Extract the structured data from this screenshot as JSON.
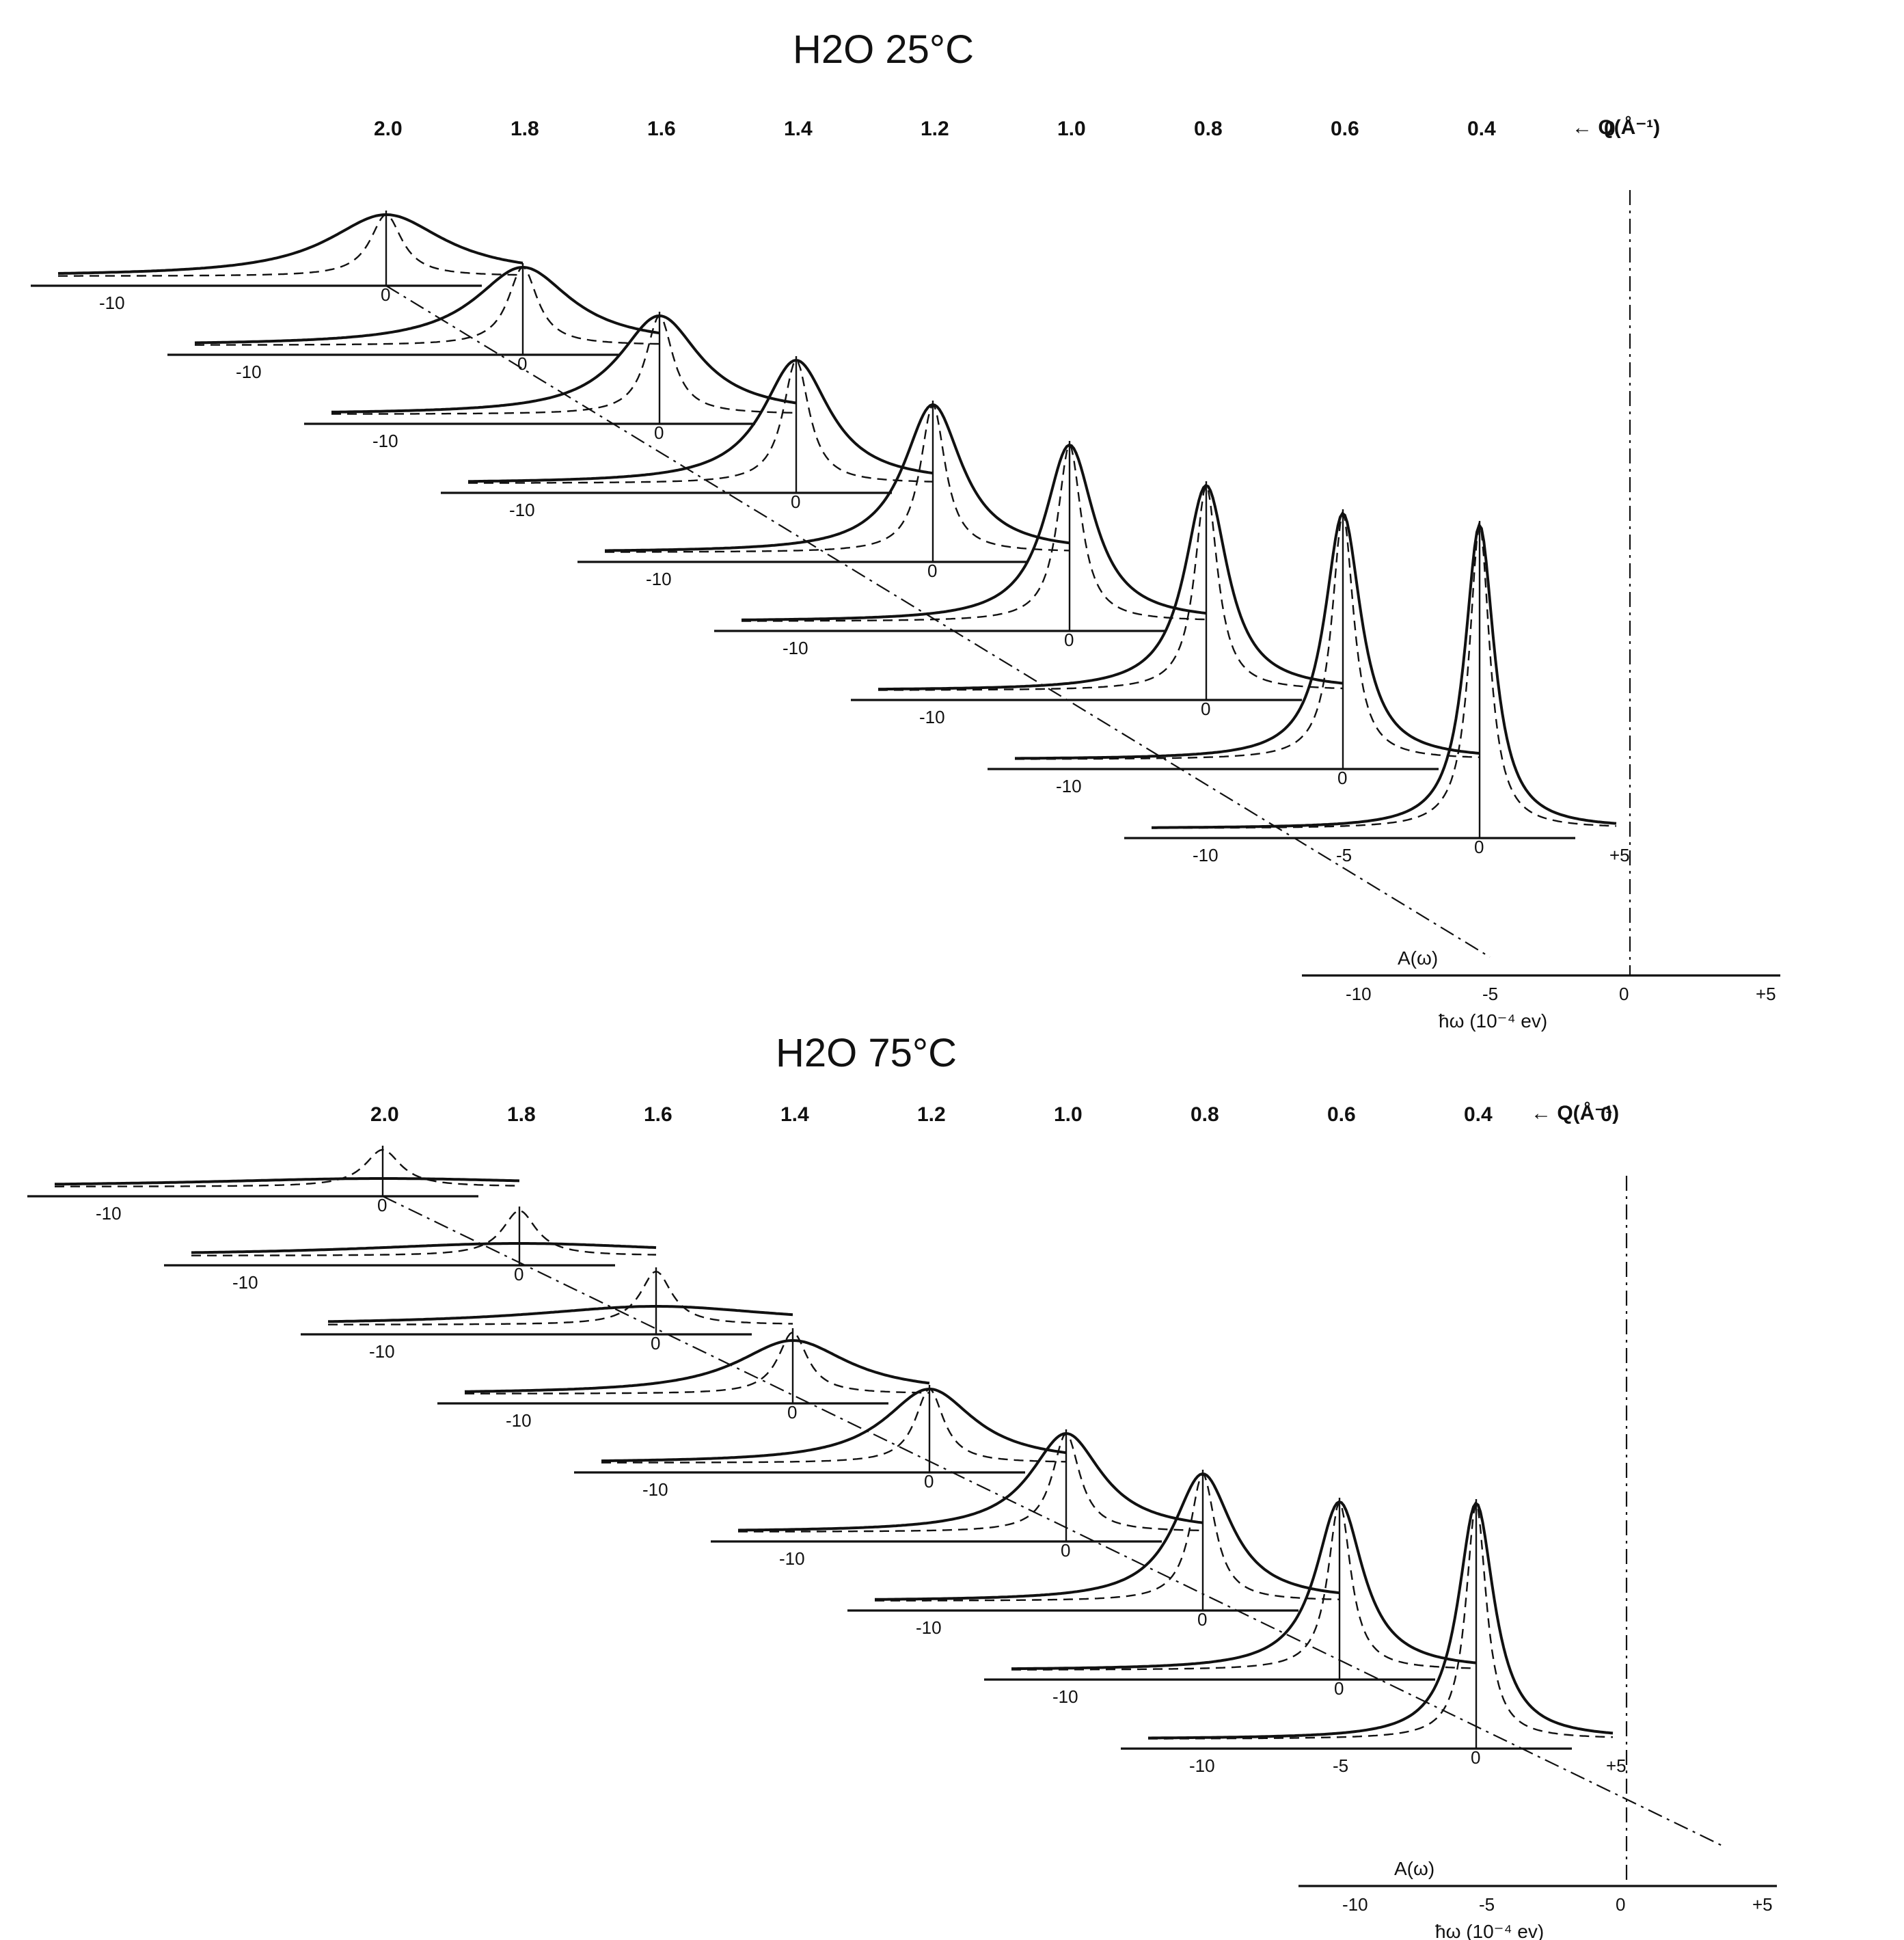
{
  "chart_data": [
    {
      "type": "line",
      "title": "H2O 25°C",
      "q_axis_label": "← Q(Å⁻¹)",
      "q_values": [
        "2.0",
        "1.8",
        "1.6",
        "1.4",
        "1.2",
        "1.0",
        "0.8",
        "0.6",
        "0.4",
        "0"
      ],
      "x_tick_labels": [
        "-10",
        "-5",
        "0",
        "+5"
      ],
      "xlabel": "ħω (10⁻⁴ ev)",
      "resolution_label": "A(ω)",
      "xlim": [
        -12,
        5
      ],
      "series": [
        {
          "name": "2.0",
          "solid_peak": 0.3,
          "solid_width": 5.2,
          "dashed_peak": 0.3,
          "dashed_width": 1.4
        },
        {
          "name": "1.8",
          "solid_peak": 0.38,
          "solid_width": 4.3,
          "dashed_peak": 0.38,
          "dashed_width": 1.3
        },
        {
          "name": "1.6",
          "solid_peak": 0.48,
          "solid_width": 3.6,
          "dashed_peak": 0.48,
          "dashed_width": 1.2
        },
        {
          "name": "1.4",
          "solid_peak": 0.6,
          "solid_width": 3.0,
          "dashed_peak": 0.6,
          "dashed_width": 1.15
        },
        {
          "name": "1.2",
          "solid_peak": 0.72,
          "solid_width": 2.6,
          "dashed_peak": 0.72,
          "dashed_width": 1.1
        },
        {
          "name": "1.0",
          "solid_peak": 0.86,
          "solid_width": 2.2,
          "dashed_peak": 0.86,
          "dashed_width": 1.05
        },
        {
          "name": "0.8",
          "solid_peak": 1.0,
          "solid_width": 1.9,
          "dashed_peak": 1.0,
          "dashed_width": 1.0
        },
        {
          "name": "0.6",
          "solid_peak": 1.2,
          "solid_width": 1.6,
          "dashed_peak": 1.2,
          "dashed_width": 0.95
        },
        {
          "name": "0.4",
          "solid_peak": 1.48,
          "solid_width": 1.3,
          "dashed_peak": 1.48,
          "dashed_width": 0.9
        }
      ]
    },
    {
      "type": "line",
      "title": "H2O 75°C",
      "q_axis_label": "← Q(Å⁻¹)",
      "q_values": [
        "2.0",
        "1.8",
        "1.6",
        "1.4",
        "1.2",
        "1.0",
        "0.8",
        "0.6",
        "0.4",
        "0"
      ],
      "x_tick_labels": [
        "-10",
        "-5",
        "0",
        "+5"
      ],
      "xlabel": "ħω (10⁻⁴ ev)",
      "resolution_label": "A(ω)",
      "xlim": [
        -12,
        5
      ],
      "series": [
        {
          "name": "2.0",
          "solid_peak": 0.04,
          "solid_width": 16.0,
          "dashed_peak": 0.18,
          "dashed_width": 1.6
        },
        {
          "name": "1.8",
          "solid_peak": 0.06,
          "solid_width": 14.0,
          "dashed_peak": 0.22,
          "dashed_width": 1.5
        },
        {
          "name": "1.6",
          "solid_peak": 0.09,
          "solid_width": 11.0,
          "dashed_peak": 0.26,
          "dashed_width": 1.4
        },
        {
          "name": "1.4",
          "solid_peak": 0.26,
          "solid_width": 5.0,
          "dashed_peak": 0.3,
          "dashed_width": 1.3
        },
        {
          "name": "1.2",
          "solid_peak": 0.36,
          "solid_width": 4.0,
          "dashed_peak": 0.36,
          "dashed_width": 1.25
        },
        {
          "name": "1.0",
          "solid_peak": 0.48,
          "solid_width": 3.2,
          "dashed_peak": 0.48,
          "dashed_width": 1.2
        },
        {
          "name": "0.8",
          "solid_peak": 0.62,
          "solid_width": 2.6,
          "dashed_peak": 0.62,
          "dashed_width": 1.1
        },
        {
          "name": "0.6",
          "solid_peak": 0.82,
          "solid_width": 2.1,
          "dashed_peak": 0.82,
          "dashed_width": 1.0
        },
        {
          "name": "0.4",
          "solid_peak": 1.15,
          "solid_width": 1.6,
          "dashed_peak": 1.15,
          "dashed_width": 0.9
        }
      ]
    }
  ]
}
